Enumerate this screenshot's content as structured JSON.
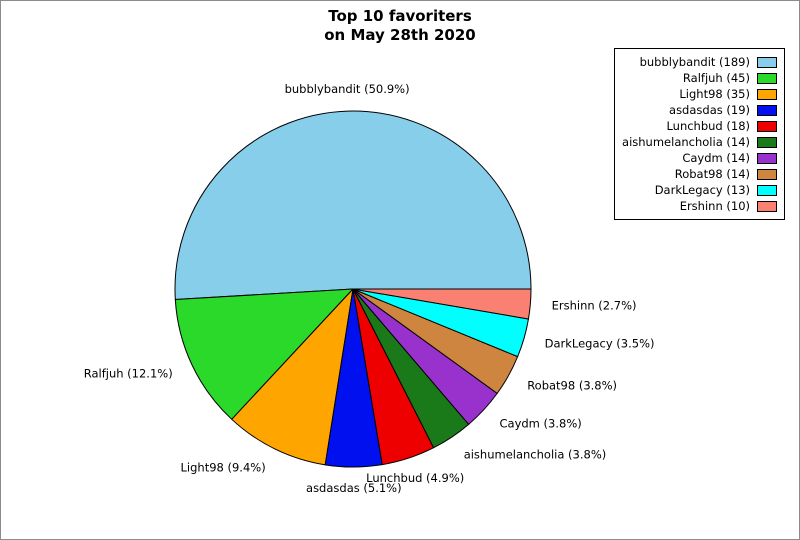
{
  "title": {
    "line1": "Top 10 favoriters",
    "line2": "on May 28th 2020"
  },
  "chart_data": {
    "type": "pie",
    "title": "Top 10 favoriters on May 28th 2020",
    "total": 371,
    "start_angle_deg": 0,
    "direction": "counterclockwise",
    "legend_position": "upper right",
    "slices": [
      {
        "name": "bubblybandit",
        "value": 189,
        "pct": 50.9,
        "color": "#87CEEB",
        "label": "bubblybandit (50.9%)",
        "legend": "bubblybandit (189)"
      },
      {
        "name": "Ralfjuh",
        "value": 45,
        "pct": 12.1,
        "color": "#2BD92B",
        "label": "Ralfjuh (12.1%)",
        "legend": "Ralfjuh (45)"
      },
      {
        "name": "Light98",
        "value": 35,
        "pct": 9.4,
        "color": "#FFA500",
        "label": "Light98 (9.4%)",
        "legend": "Light98 (35)"
      },
      {
        "name": "asdasdas",
        "value": 19,
        "pct": 5.1,
        "color": "#0010EE",
        "label": "asdasdas (5.1%)",
        "legend": "asdasdas (19)"
      },
      {
        "name": "Lunchbud",
        "value": 18,
        "pct": 4.9,
        "color": "#EE0000",
        "label": "Lunchbud (4.9%)",
        "legend": "Lunchbud (18)"
      },
      {
        "name": "aishumelancholia",
        "value": 14,
        "pct": 3.8,
        "color": "#1A7A1A",
        "label": "aishumelancholia (3.8%)",
        "legend": "aishumelancholia (14)"
      },
      {
        "name": "Caydm",
        "value": 14,
        "pct": 3.8,
        "color": "#9932CC",
        "label": "Caydm (3.8%)",
        "legend": "Caydm (14)"
      },
      {
        "name": "Robat98",
        "value": 14,
        "pct": 3.8,
        "color": "#CD853F",
        "label": "Robat98 (3.8%)",
        "legend": "Robat98 (14)"
      },
      {
        "name": "DarkLegacy",
        "value": 13,
        "pct": 3.5,
        "color": "#00FFFF",
        "label": "DarkLegacy (3.5%)",
        "legend": "DarkLegacy (13)"
      },
      {
        "name": "Ershinn",
        "value": 10,
        "pct": 2.7,
        "color": "#FA8072",
        "label": "Ershinn (2.7%)",
        "legend": "Ershinn (10)"
      }
    ]
  }
}
